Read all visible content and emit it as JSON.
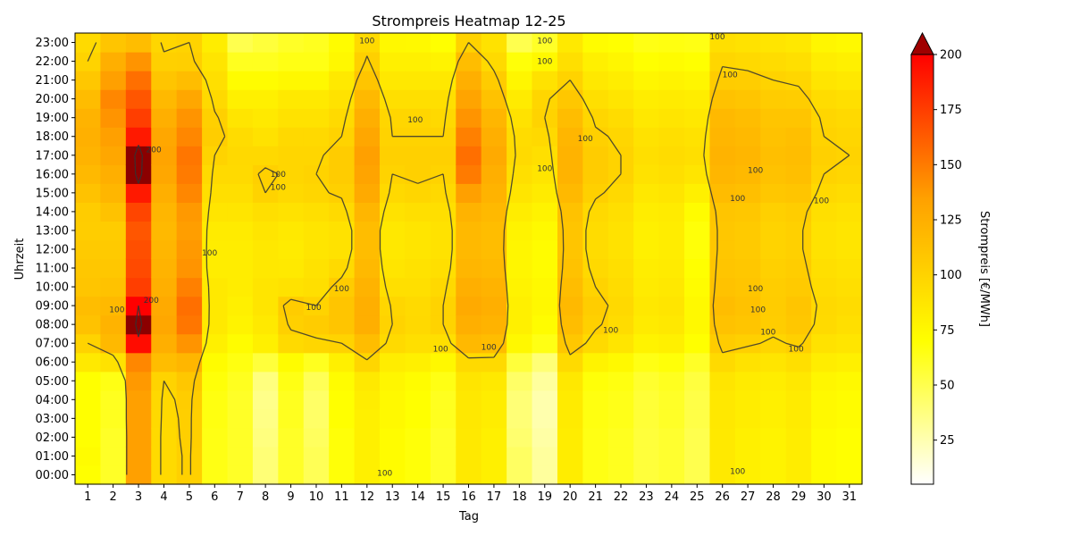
{
  "chart_data": {
    "type": "heatmap",
    "title": "Strompreis Heatmap 12-25",
    "xlabel": "Tag",
    "ylabel": "Uhrzeit",
    "colorbar_label": "Strompreis [€/MWh]",
    "x": [
      1,
      2,
      3,
      4,
      5,
      6,
      7,
      8,
      9,
      10,
      11,
      12,
      13,
      14,
      15,
      16,
      17,
      18,
      19,
      20,
      21,
      22,
      23,
      24,
      25,
      26,
      27,
      28,
      29,
      30,
      31
    ],
    "y": [
      "00:00",
      "01:00",
      "02:00",
      "03:00",
      "04:00",
      "05:00",
      "06:00",
      "07:00",
      "08:00",
      "09:00",
      "10:00",
      "11:00",
      "12:00",
      "13:00",
      "14:00",
      "15:00",
      "16:00",
      "17:00",
      "18:00",
      "19:00",
      "20:00",
      "21:00",
      "22:00",
      "23:00"
    ],
    "colorbar": {
      "min": 5,
      "max": 200,
      "ticks": [
        25,
        50,
        75,
        100,
        125,
        150,
        175,
        200
      ],
      "extend": "max"
    },
    "colorscale": [
      "#ffffff",
      "#ffff00",
      "#ffa000",
      "#ff0000",
      "#8b0000"
    ],
    "contour_levels": [
      100,
      200
    ],
    "contour_labels": [
      {
        "text": "100",
        "day": 2.15,
        "hour": 8.8
      },
      {
        "text": "200",
        "day": 3.5,
        "hour": 9.3
      },
      {
        "text": "200",
        "day": 3.6,
        "hour": 17.3
      },
      {
        "text": "100",
        "day": 5.8,
        "hour": 11.8
      },
      {
        "text": "100",
        "day": 8.5,
        "hour": 16.0
      },
      {
        "text": "100",
        "day": 8.5,
        "hour": 15.3
      },
      {
        "text": "100",
        "day": 9.9,
        "hour": 8.9
      },
      {
        "text": "100",
        "day": 11.0,
        "hour": 9.9
      },
      {
        "text": "100",
        "day": 12.0,
        "hour": 23.1
      },
      {
        "text": "100",
        "day": 12.7,
        "hour": 0.1
      },
      {
        "text": "100",
        "day": 13.9,
        "hour": 18.9
      },
      {
        "text": "100",
        "day": 14.9,
        "hour": 6.7
      },
      {
        "text": "100",
        "day": 16.8,
        "hour": 6.8
      },
      {
        "text": "100",
        "day": 19.0,
        "hour": 23.1
      },
      {
        "text": "100",
        "day": 19.0,
        "hour": 22.0
      },
      {
        "text": "100",
        "day": 19.0,
        "hour": 16.3
      },
      {
        "text": "100",
        "day": 20.6,
        "hour": 17.9
      },
      {
        "text": "100",
        "day": 21.6,
        "hour": 7.7
      },
      {
        "text": "100",
        "day": 25.8,
        "hour": 23.3
      },
      {
        "text": "100",
        "day": 26.3,
        "hour": 21.3
      },
      {
        "text": "100",
        "day": 26.6,
        "hour": 14.7
      },
      {
        "text": "100",
        "day": 26.6,
        "hour": 0.2
      },
      {
        "text": "100",
        "day": 27.3,
        "hour": 16.2
      },
      {
        "text": "100",
        "day": 27.3,
        "hour": 9.9
      },
      {
        "text": "100",
        "day": 27.4,
        "hour": 8.8
      },
      {
        "text": "100",
        "day": 27.8,
        "hour": 7.6
      },
      {
        "text": "100",
        "day": 28.9,
        "hour": 6.7
      },
      {
        "text": "100",
        "day": 29.9,
        "hour": 14.6
      }
    ],
    "values": [
      [
        70,
        72,
        70,
        70,
        70,
        70,
        85,
        100,
        112,
        115,
        110,
        108,
        106,
        104,
        105,
        112,
        118,
        122,
        124,
        122,
        116,
        108,
        100,
        95
      ],
      [
        60,
        60,
        60,
        62,
        62,
        65,
        90,
        118,
        122,
        118,
        112,
        108,
        106,
        105,
        112,
        120,
        125,
        130,
        135,
        140,
        145,
        135,
        125,
        110
      ],
      [
        135,
        135,
        135,
        135,
        135,
        138,
        145,
        195,
        210,
        200,
        175,
        170,
        168,
        165,
        172,
        190,
        210,
        212,
        190,
        175,
        165,
        155,
        140,
        115
      ],
      [
        95,
        95,
        95,
        96,
        97,
        100,
        115,
        125,
        130,
        128,
        125,
        122,
        120,
        118,
        120,
        125,
        130,
        132,
        130,
        125,
        118,
        110,
        102,
        98
      ],
      [
        102,
        102,
        103,
        103,
        104,
        108,
        120,
        140,
        152,
        155,
        148,
        140,
        138,
        136,
        138,
        145,
        150,
        152,
        145,
        140,
        130,
        115,
        103,
        100
      ],
      [
        65,
        65,
        65,
        66,
        66,
        68,
        72,
        80,
        85,
        85,
        85,
        82,
        82,
        84,
        88,
        92,
        95,
        100,
        104,
        102,
        96,
        92,
        88,
        82
      ],
      [
        60,
        60,
        60,
        60,
        60,
        62,
        66,
        72,
        78,
        80,
        82,
        82,
        82,
        84,
        88,
        92,
        95,
        96,
        94,
        88,
        80,
        72,
        62,
        50
      ],
      [
        40,
        40,
        38,
        36,
        35,
        38,
        55,
        80,
        85,
        88,
        88,
        86,
        86,
        88,
        92,
        100,
        102,
        96,
        90,
        85,
        80,
        72,
        62,
        55
      ],
      [
        60,
        60,
        60,
        62,
        62,
        65,
        72,
        95,
        102,
        105,
        90,
        85,
        84,
        85,
        90,
        96,
        98,
        98,
        96,
        90,
        85,
        75,
        65,
        60
      ],
      [
        48,
        48,
        46,
        44,
        44,
        48,
        62,
        98,
        105,
        100,
        92,
        90,
        88,
        88,
        92,
        98,
        100,
        98,
        96,
        90,
        85,
        75,
        65,
        62
      ],
      [
        68,
        68,
        68,
        70,
        70,
        72,
        80,
        100,
        110,
        110,
        105,
        95,
        90,
        90,
        95,
        102,
        105,
        105,
        100,
        95,
        90,
        85,
        75,
        72
      ],
      [
        80,
        80,
        80,
        80,
        82,
        85,
        98,
        115,
        125,
        125,
        122,
        118,
        115,
        115,
        120,
        128,
        132,
        135,
        130,
        125,
        118,
        110,
        102,
        95
      ],
      [
        72,
        72,
        72,
        74,
        74,
        76,
        82,
        95,
        100,
        98,
        92,
        88,
        86,
        86,
        90,
        96,
        100,
        102,
        100,
        98,
        92,
        86,
        80,
        75
      ],
      [
        68,
        68,
        68,
        70,
        70,
        72,
        80,
        92,
        96,
        95,
        92,
        90,
        88,
        88,
        92,
        98,
        102,
        102,
        100,
        98,
        92,
        86,
        80,
        74
      ],
      [
        60,
        60,
        60,
        62,
        62,
        65,
        75,
        92,
        100,
        100,
        96,
        92,
        90,
        90,
        92,
        96,
        100,
        102,
        100,
        96,
        92,
        86,
        78,
        70
      ],
      [
        85,
        85,
        85,
        86,
        86,
        88,
        95,
        118,
        125,
        128,
        125,
        120,
        118,
        118,
        122,
        135,
        150,
        155,
        148,
        140,
        132,
        125,
        115,
        100
      ],
      [
        80,
        80,
        80,
        82,
        82,
        85,
        95,
        115,
        122,
        125,
        122,
        118,
        115,
        115,
        118,
        122,
        125,
        128,
        125,
        120,
        112,
        105,
        95,
        90
      ],
      [
        45,
        45,
        42,
        40,
        40,
        44,
        55,
        75,
        80,
        80,
        78,
        76,
        76,
        78,
        82,
        88,
        92,
        95,
        94,
        90,
        84,
        76,
        68,
        50
      ],
      [
        30,
        30,
        28,
        26,
        26,
        30,
        40,
        65,
        72,
        75,
        74,
        72,
        72,
        74,
        78,
        84,
        88,
        92,
        96,
        100,
        98,
        90,
        75,
        60
      ],
      [
        82,
        82,
        82,
        84,
        84,
        86,
        95,
        108,
        115,
        118,
        115,
        112,
        110,
        110,
        112,
        118,
        122,
        122,
        120,
        115,
        108,
        100,
        92,
        85
      ],
      [
        65,
        65,
        65,
        66,
        66,
        68,
        78,
        95,
        102,
        104,
        100,
        96,
        94,
        94,
        96,
        102,
        105,
        105,
        102,
        98,
        92,
        86,
        80,
        72
      ],
      [
        62,
        62,
        62,
        64,
        64,
        66,
        74,
        88,
        94,
        96,
        94,
        92,
        90,
        90,
        92,
        96,
        100,
        100,
        98,
        94,
        88,
        82,
        76,
        70
      ],
      [
        55,
        55,
        55,
        56,
        56,
        58,
        65,
        78,
        84,
        86,
        84,
        82,
        80,
        80,
        82,
        86,
        90,
        92,
        90,
        86,
        82,
        76,
        70,
        65
      ],
      [
        58,
        58,
        58,
        60,
        60,
        62,
        68,
        80,
        86,
        88,
        86,
        84,
        82,
        82,
        84,
        88,
        92,
        94,
        92,
        88,
        84,
        78,
        72,
        66
      ],
      [
        50,
        50,
        50,
        52,
        52,
        54,
        60,
        70,
        74,
        74,
        72,
        70,
        68,
        68,
        72,
        80,
        88,
        92,
        90,
        86,
        82,
        76,
        70,
        65
      ],
      [
        85,
        85,
        85,
        86,
        86,
        88,
        95,
        105,
        112,
        115,
        112,
        110,
        108,
        108,
        110,
        116,
        120,
        122,
        120,
        118,
        112,
        105,
        98,
        92
      ],
      [
        80,
        80,
        80,
        82,
        82,
        84,
        90,
        102,
        110,
        112,
        110,
        108,
        106,
        106,
        108,
        114,
        118,
        120,
        118,
        115,
        110,
        104,
        96,
        90
      ],
      [
        78,
        78,
        78,
        80,
        80,
        82,
        88,
        98,
        104,
        105,
        104,
        102,
        100,
        100,
        102,
        108,
        112,
        114,
        112,
        110,
        105,
        100,
        94,
        88
      ],
      [
        82,
        82,
        82,
        84,
        84,
        86,
        92,
        102,
        108,
        110,
        106,
        104,
        102,
        102,
        104,
        110,
        114,
        115,
        114,
        110,
        104,
        98,
        92,
        86
      ],
      [
        72,
        72,
        72,
        74,
        74,
        76,
        82,
        90,
        95,
        96,
        94,
        92,
        90,
        90,
        92,
        96,
        100,
        102,
        100,
        98,
        94,
        88,
        82,
        76
      ],
      [
        70,
        70,
        70,
        72,
        72,
        74,
        80,
        88,
        92,
        94,
        92,
        90,
        88,
        88,
        90,
        94,
        98,
        100,
        98,
        96,
        92,
        86,
        80,
        74
      ]
    ]
  }
}
